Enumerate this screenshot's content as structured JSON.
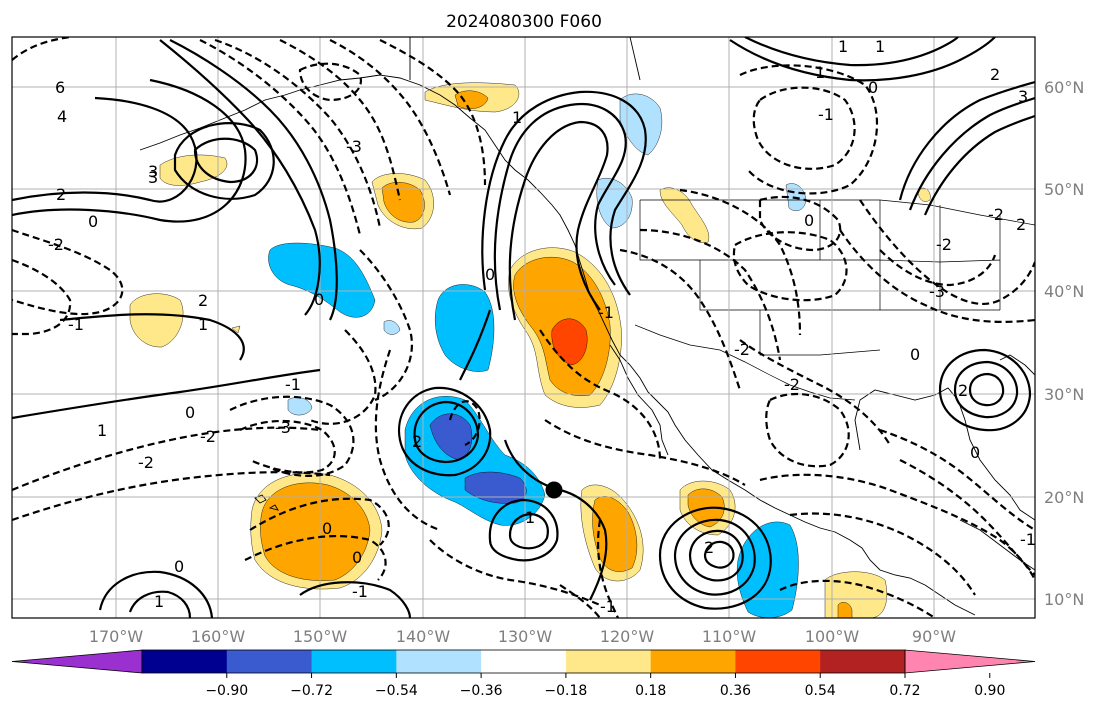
{
  "title": "2024080300 F060",
  "lat_labels": [
    "60°N",
    "50°N",
    "40°N",
    "30°N",
    "20°N",
    "10°N"
  ],
  "lon_labels": [
    "170°W",
    "160°W",
    "150°W",
    "140°W",
    "130°W",
    "120°W",
    "110°W",
    "100°W",
    "90°W"
  ],
  "colorbar": {
    "tick_labels": [
      "−0.90",
      "−0.72",
      "−0.54",
      "−0.36",
      "−0.18",
      "0.18",
      "0.36",
      "0.54",
      "0.72",
      "0.90"
    ],
    "colors": [
      "#9a30d0",
      "#000090",
      "#3a5bd0",
      "#00bfff",
      "#b0e2ff",
      "#ffffff",
      "#ffe88a",
      "#ffa500",
      "#ff4500",
      "#b22222",
      "#ff85b0"
    ]
  },
  "contour_labels": [
    "6",
    "4",
    "2",
    "0",
    "-2",
    "-1",
    "1",
    "3",
    "-3",
    "0",
    "2",
    "-2",
    "0",
    "1",
    "-1",
    "0",
    "2",
    "-2",
    "1",
    "0",
    "-1",
    "0",
    "-1",
    "1",
    "0",
    "2",
    "-2",
    "-3",
    "-2",
    "1",
    "0",
    "-1",
    "0",
    "2",
    "3",
    "-2",
    "1",
    "1",
    "0",
    "2",
    "-2",
    "-1",
    "-3",
    "0",
    "1",
    "3",
    "2",
    "-1"
  ],
  "center_marker": "storm-center"
}
